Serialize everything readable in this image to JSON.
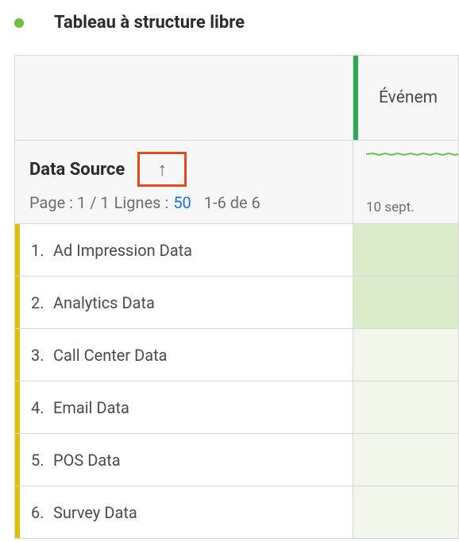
{
  "colors": {
    "status_dot": "#6fbf44",
    "metric_accent": "#2fa84f",
    "row_accent": "#e0c000",
    "sort_box_border": "#e34a20",
    "link": "#1473e6",
    "shaded_cell": "#dbeccb",
    "faint_cell": "#f2f7eb",
    "spark_line": "#6fbf44"
  },
  "title": "Tableau à structure libre",
  "metric_header": "Événem",
  "dimension": {
    "name": "Data Source",
    "sort_icon": "↑",
    "pager_prefix": "Page : 1 / 1",
    "lines_label": "Lignes :",
    "lines_value": "50",
    "range": "1-6 de 6"
  },
  "metric_date": "10 sept.",
  "rows": [
    {
      "n": "1.",
      "label": "Ad Impression Data",
      "shade": "shaded"
    },
    {
      "n": "2.",
      "label": "Analytics Data",
      "shade": "shaded"
    },
    {
      "n": "3.",
      "label": "Call Center Data",
      "shade": "faint"
    },
    {
      "n": "4.",
      "label": "Email Data",
      "shade": "faint"
    },
    {
      "n": "5.",
      "label": "POS Data",
      "shade": "faint"
    },
    {
      "n": "6.",
      "label": "Survey Data",
      "shade": "faint"
    }
  ]
}
